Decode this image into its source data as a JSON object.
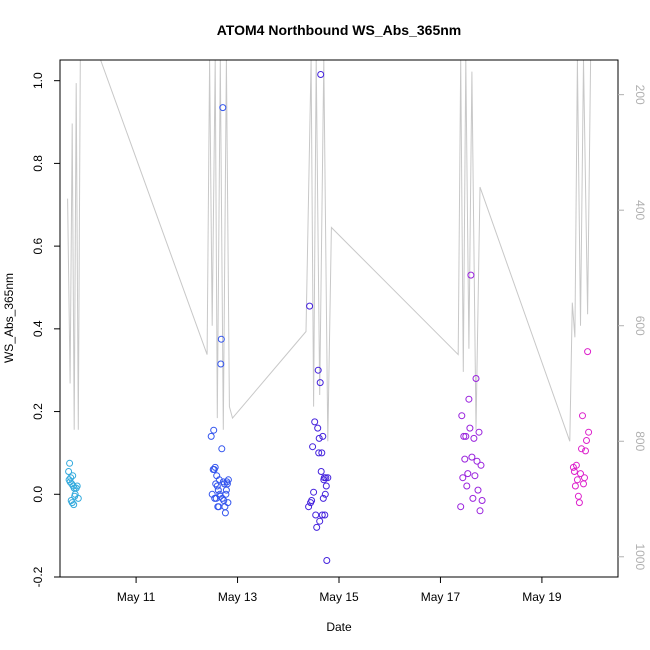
{
  "chart_data": {
    "type": "scatter",
    "title": "ATOM4 Northbound WS_Abs_365nm",
    "xlabel": "Date",
    "ylabel": "WS_Abs_365nm",
    "x_ticks": [
      "May 11",
      "May 13",
      "May 15",
      "May 17",
      "May 19"
    ],
    "x_tick_days": [
      11,
      13,
      15,
      17,
      19
    ],
    "xlim": [
      9.5,
      20.5
    ],
    "ylim": [
      -0.2,
      1.05
    ],
    "y_ticks": [
      "-0.2",
      "0.0",
      "0.2",
      "0.4",
      "0.6",
      "0.8",
      "1.0"
    ],
    "y_tick_values": [
      -0.2,
      0.0,
      0.2,
      0.4,
      0.6,
      0.8,
      1.0
    ],
    "y2_ticks": [
      "200",
      "400",
      "600",
      "800",
      "1000"
    ],
    "y2_tick_values": [
      200,
      400,
      600,
      800,
      1000
    ],
    "y2lim": [
      1035,
      140
    ],
    "grid": false,
    "colors": {
      "flight1": "#33aadd",
      "flight2": "#3355ee",
      "flight3": "#4422dd",
      "flight4": "#9922dd",
      "flight5": "#dd22cc",
      "altitude_line": "#c8c8c8"
    },
    "series": [
      {
        "color_key": "flight1",
        "x": [
          9.67,
          9.68,
          9.69,
          9.7,
          9.71,
          9.72,
          9.73,
          9.74,
          9.75,
          9.76,
          9.77,
          9.78,
          9.79,
          9.8,
          9.82,
          9.84,
          9.86
        ],
        "y": [
          0.055,
          0.035,
          0.075,
          0.03,
          0.04,
          -0.015,
          0.025,
          -0.02,
          0.045,
          0.02,
          -0.025,
          0.015,
          -0.005,
          0.0,
          0.015,
          0.02,
          -0.01
        ]
      },
      {
        "color_key": "flight2",
        "x": [
          12.48,
          12.5,
          12.52,
          12.53,
          12.54,
          12.55,
          12.56,
          12.57,
          12.58,
          12.59,
          12.6,
          12.61,
          12.62,
          12.63,
          12.64,
          12.65,
          12.66,
          12.67,
          12.68,
          12.69,
          12.7,
          12.71,
          12.72,
          12.73,
          12.74,
          12.75,
          12.76,
          12.77,
          12.78,
          12.79,
          12.8,
          12.81,
          12.82
        ],
        "y": [
          0.14,
          0.0,
          0.06,
          0.155,
          0.06,
          -0.01,
          0.065,
          0.025,
          -0.01,
          0.045,
          0.02,
          -0.03,
          0.01,
          -0.03,
          0.035,
          0.0,
          -0.005,
          0.315,
          0.375,
          0.11,
          -0.01,
          0.935,
          0.03,
          -0.015,
          0.025,
          -0.03,
          -0.045,
          0.0,
          0.01,
          0.03,
          0.025,
          -0.02,
          0.035
        ]
      },
      {
        "color_key": "flight3",
        "x": [
          14.4,
          14.42,
          14.44,
          14.46,
          14.48,
          14.5,
          14.52,
          14.54,
          14.56,
          14.58,
          14.59,
          14.6,
          14.61,
          14.62,
          14.63,
          14.64,
          14.65,
          14.66,
          14.67,
          14.68,
          14.69,
          14.7,
          14.71,
          14.72,
          14.73,
          14.74,
          14.75,
          14.76,
          14.78
        ],
        "y": [
          -0.03,
          0.455,
          -0.02,
          -0.015,
          0.115,
          0.005,
          0.175,
          -0.05,
          -0.08,
          0.16,
          0.3,
          0.1,
          0.135,
          -0.065,
          0.27,
          1.015,
          0.055,
          0.1,
          -0.05,
          0.14,
          -0.01,
          0.035,
          0.04,
          -0.05,
          0.0,
          0.04,
          0.02,
          -0.16,
          0.04
        ]
      },
      {
        "color_key": "flight4",
        "x": [
          17.4,
          17.42,
          17.44,
          17.46,
          17.48,
          17.5,
          17.52,
          17.54,
          17.56,
          17.58,
          17.6,
          17.62,
          17.64,
          17.66,
          17.68,
          17.7,
          17.72,
          17.74,
          17.76,
          17.78,
          17.8,
          17.82
        ],
        "y": [
          -0.03,
          0.19,
          0.04,
          0.14,
          0.085,
          0.14,
          0.02,
          0.05,
          0.23,
          0.16,
          0.53,
          0.09,
          -0.01,
          0.135,
          0.045,
          0.28,
          0.08,
          0.01,
          0.15,
          -0.04,
          0.07,
          -0.015
        ]
      },
      {
        "color_key": "flight5",
        "x": [
          19.62,
          19.64,
          19.66,
          19.68,
          19.7,
          19.72,
          19.74,
          19.76,
          19.78,
          19.8,
          19.82,
          19.84,
          19.86,
          19.88,
          19.9,
          19.92
        ],
        "y": [
          0.065,
          0.055,
          0.02,
          0.07,
          0.035,
          -0.005,
          -0.02,
          0.05,
          0.11,
          0.19,
          0.025,
          0.04,
          0.105,
          0.13,
          0.345,
          0.15
        ]
      }
    ],
    "altitude_line": {
      "axis": "y2",
      "x": [
        9.65,
        9.7,
        9.74,
        9.78,
        9.82,
        9.86,
        9.9,
        10.3,
        12.4,
        12.45,
        12.5,
        12.56,
        12.6,
        12.66,
        12.72,
        12.78,
        12.84,
        12.9,
        14.35,
        14.45,
        14.5,
        14.55,
        14.62,
        14.7,
        14.78,
        14.85,
        17.35,
        17.4,
        17.45,
        17.5,
        17.56,
        17.62,
        17.7,
        17.78,
        19.55,
        19.6,
        19.65,
        19.7,
        19.76,
        19.82,
        19.9,
        19.96
      ],
      "y": [
        380,
        700,
        250,
        780,
        180,
        780,
        140,
        140,
        650,
        140,
        600,
        140,
        760,
        140,
        780,
        140,
        740,
        760,
        610,
        140,
        740,
        140,
        720,
        140,
        800,
        430,
        650,
        140,
        680,
        140,
        640,
        160,
        780,
        360,
        800,
        560,
        620,
        140,
        600,
        140,
        580,
        140
      ]
    }
  }
}
